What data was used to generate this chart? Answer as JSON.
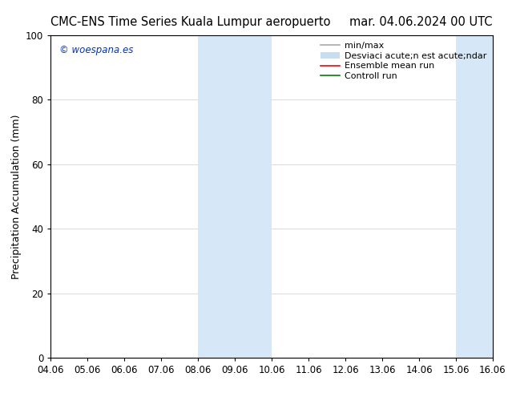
{
  "title_left": "CMC-ENS Time Series Kuala Lumpur aeropuerto",
  "title_right": "mar. 04.06.2024 00 UTC",
  "ylabel": "Precipitation Accumulation (mm)",
  "ylim": [
    0,
    100
  ],
  "yticks": [
    0,
    20,
    40,
    60,
    80,
    100
  ],
  "xlim_start": 0,
  "xlim_end": 12,
  "xtick_labels": [
    "04.06",
    "05.06",
    "06.06",
    "07.06",
    "08.06",
    "09.06",
    "10.06",
    "11.06",
    "12.06",
    "13.06",
    "14.06",
    "15.06",
    "16.06"
  ],
  "shaded_regions": [
    {
      "xstart": 4.0,
      "xend": 6.0,
      "color": "#d6e8f7",
      "alpha": 1.0
    },
    {
      "xstart": 11.0,
      "xend": 12.0,
      "color": "#d6e8f7",
      "alpha": 1.0
    }
  ],
  "legend_entries": [
    {
      "label": "min/max",
      "color": "#aaaaaa",
      "lw": 1.2,
      "type": "line"
    },
    {
      "label": "Desviaci acute;n est acute;ndar",
      "color": "#c8ddf0",
      "lw": 5,
      "type": "patch"
    },
    {
      "label": "Ensemble mean run",
      "color": "#ff0000",
      "lw": 1.2,
      "type": "line"
    },
    {
      "label": "Controll run",
      "color": "#008000",
      "lw": 1.2,
      "type": "line"
    }
  ],
  "watermark": "© woespana.es",
  "watermark_color": "#0033cc",
  "background_color": "#ffffff",
  "plot_bg_color": "#ffffff",
  "title_fontsize": 10.5,
  "axis_fontsize": 9,
  "tick_fontsize": 8.5,
  "legend_fontsize": 8
}
